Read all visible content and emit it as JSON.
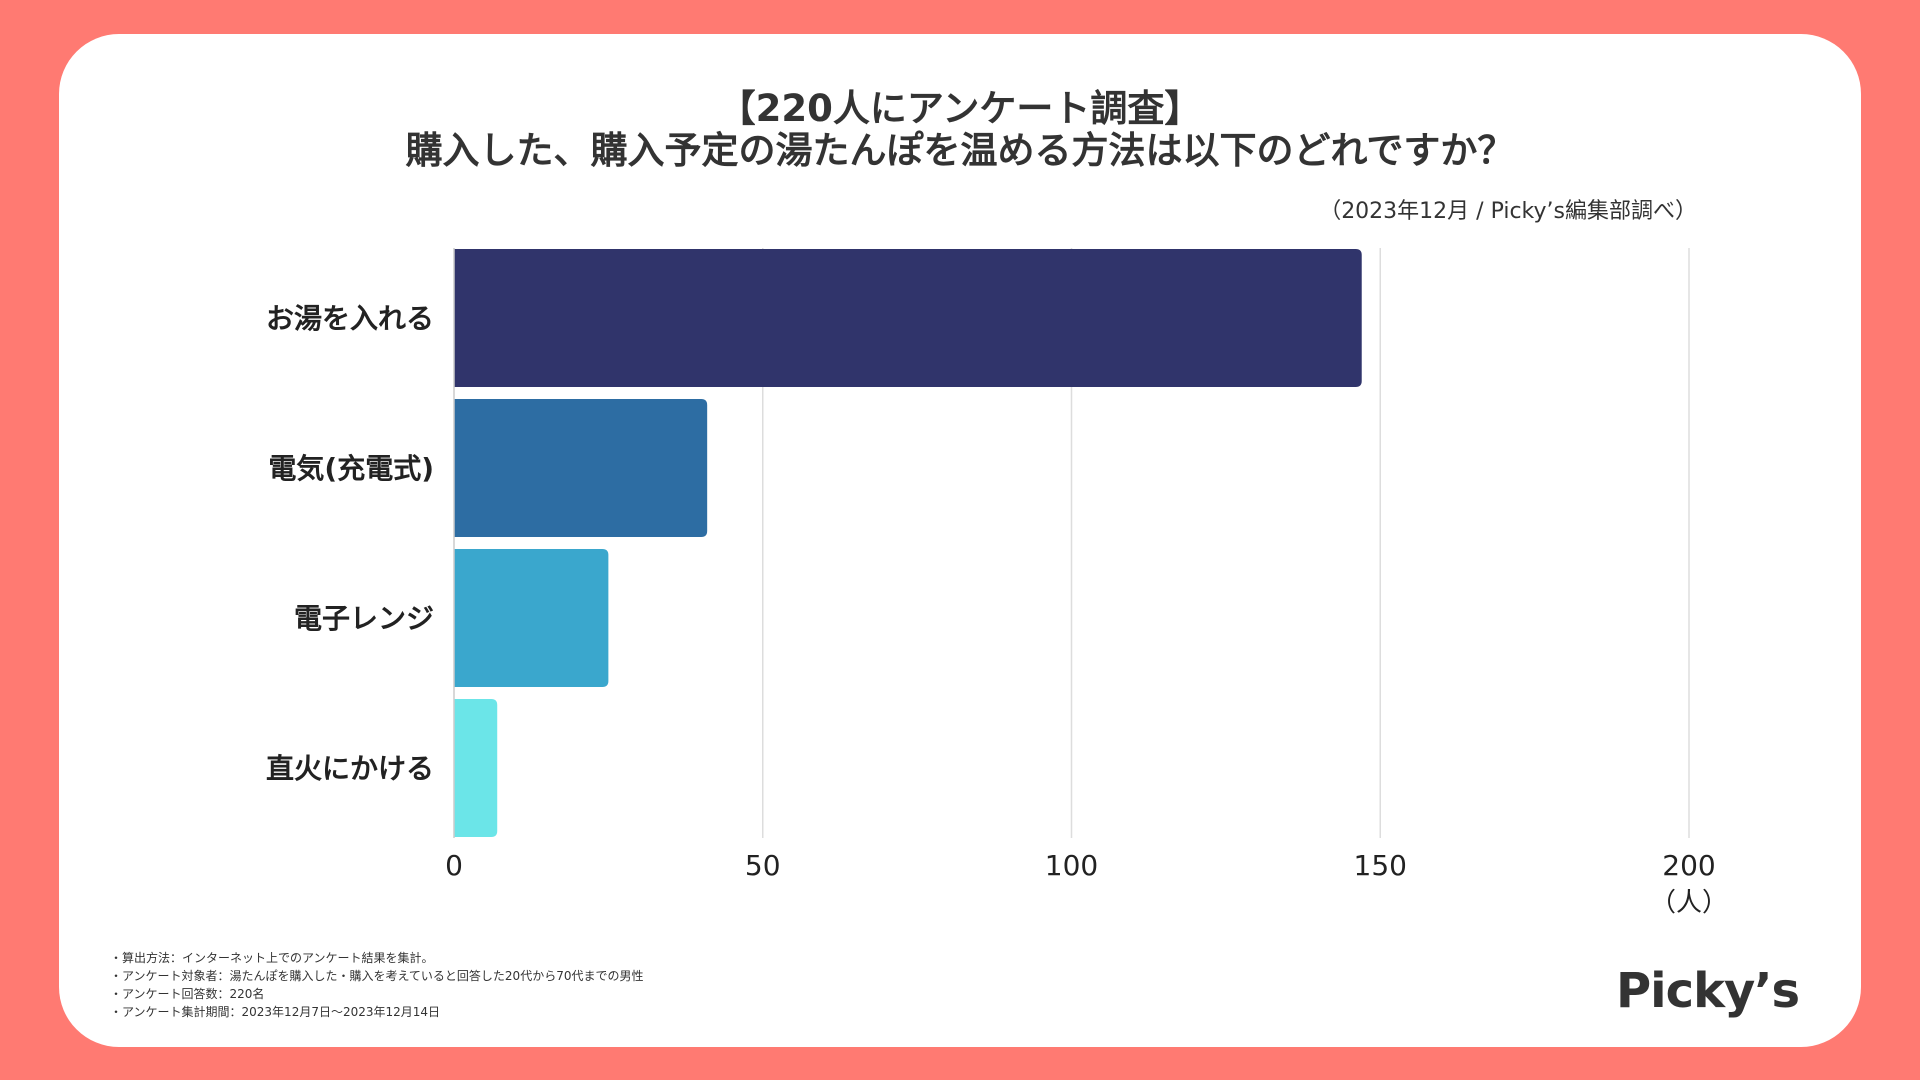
{
  "title": {
    "line1": "【220人にアンケート調査】",
    "line2": "購入した、購入予定の湯たんぽを温める方法は以下のどれですか？"
  },
  "source": "（2023年12月 / Picky’s編集部調べ）",
  "chart_data": {
    "type": "bar",
    "orientation": "horizontal",
    "categories": [
      "お湯を入れる",
      "電気(充電式)",
      "電子レンジ",
      "直火にかける"
    ],
    "values": [
      147,
      41,
      25,
      7
    ],
    "colors": [
      "#30346B",
      "#2D6DA3",
      "#3AA7CD",
      "#6BE5E8"
    ],
    "xlim": [
      0,
      200
    ],
    "xticks": [
      0,
      50,
      100,
      150,
      200
    ],
    "xlabel": "（人）",
    "grid": true
  },
  "notes": [
    "・算出方法：インターネット上でのアンケート結果を集計。",
    "・アンケート対象者：湯たんぽを購入した・購入を考えていると回答した20代から70代までの男性",
    "・アンケート回答数：220名",
    "・アンケート集計期間：2023年12月7日〜2023年12月14日"
  ],
  "logo": "Picky’s"
}
